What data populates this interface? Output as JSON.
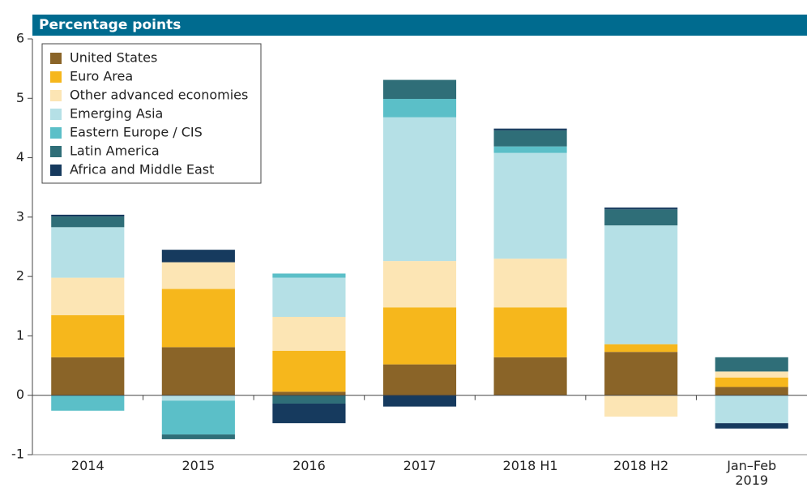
{
  "chart_data": {
    "type": "stacked_bar",
    "ylabel": "Percentage points",
    "categories": [
      "2014",
      "2015",
      "2016",
      "2017",
      "2018 H1",
      "2018 H2",
      "Jan–Feb 2019"
    ],
    "series": [
      {
        "name": "United States",
        "color": "#8a6428",
        "values": [
          0.64,
          0.81,
          0.06,
          0.52,
          0.64,
          0.73,
          0.14
        ]
      },
      {
        "name": "Euro Area",
        "color": "#f6b71c",
        "values": [
          0.71,
          0.98,
          0.69,
          0.96,
          0.84,
          0.13,
          0.16
        ]
      },
      {
        "name": "Other advanced economies",
        "color": "#fce5b4",
        "values": [
          0.63,
          0.45,
          0.57,
          0.78,
          0.82,
          -0.36,
          0.1
        ]
      },
      {
        "name": "Emerging Asia",
        "color": "#b5e0e6",
        "values": [
          0.85,
          -0.09,
          0.66,
          2.42,
          1.78,
          2.0,
          -0.47
        ]
      },
      {
        "name": "Eastern Europe / CIS",
        "color": "#5bbfc8",
        "values": [
          -0.26,
          -0.57,
          0.07,
          0.31,
          0.11,
          0,
          0
        ]
      },
      {
        "name": "Latin America",
        "color": "#2f6e78",
        "values": [
          0.18,
          -0.08,
          -0.14,
          0.32,
          0.27,
          0.27,
          0.24
        ]
      },
      {
        "name": "Africa and Middle East",
        "color": "#163a5e",
        "values": [
          0.03,
          0.21,
          -0.33,
          -0.19,
          0.03,
          0.03,
          -0.09
        ]
      }
    ],
    "ylim": [
      -1,
      6
    ],
    "yticks": [
      -1,
      0,
      1,
      2,
      3,
      4,
      5,
      6
    ]
  }
}
